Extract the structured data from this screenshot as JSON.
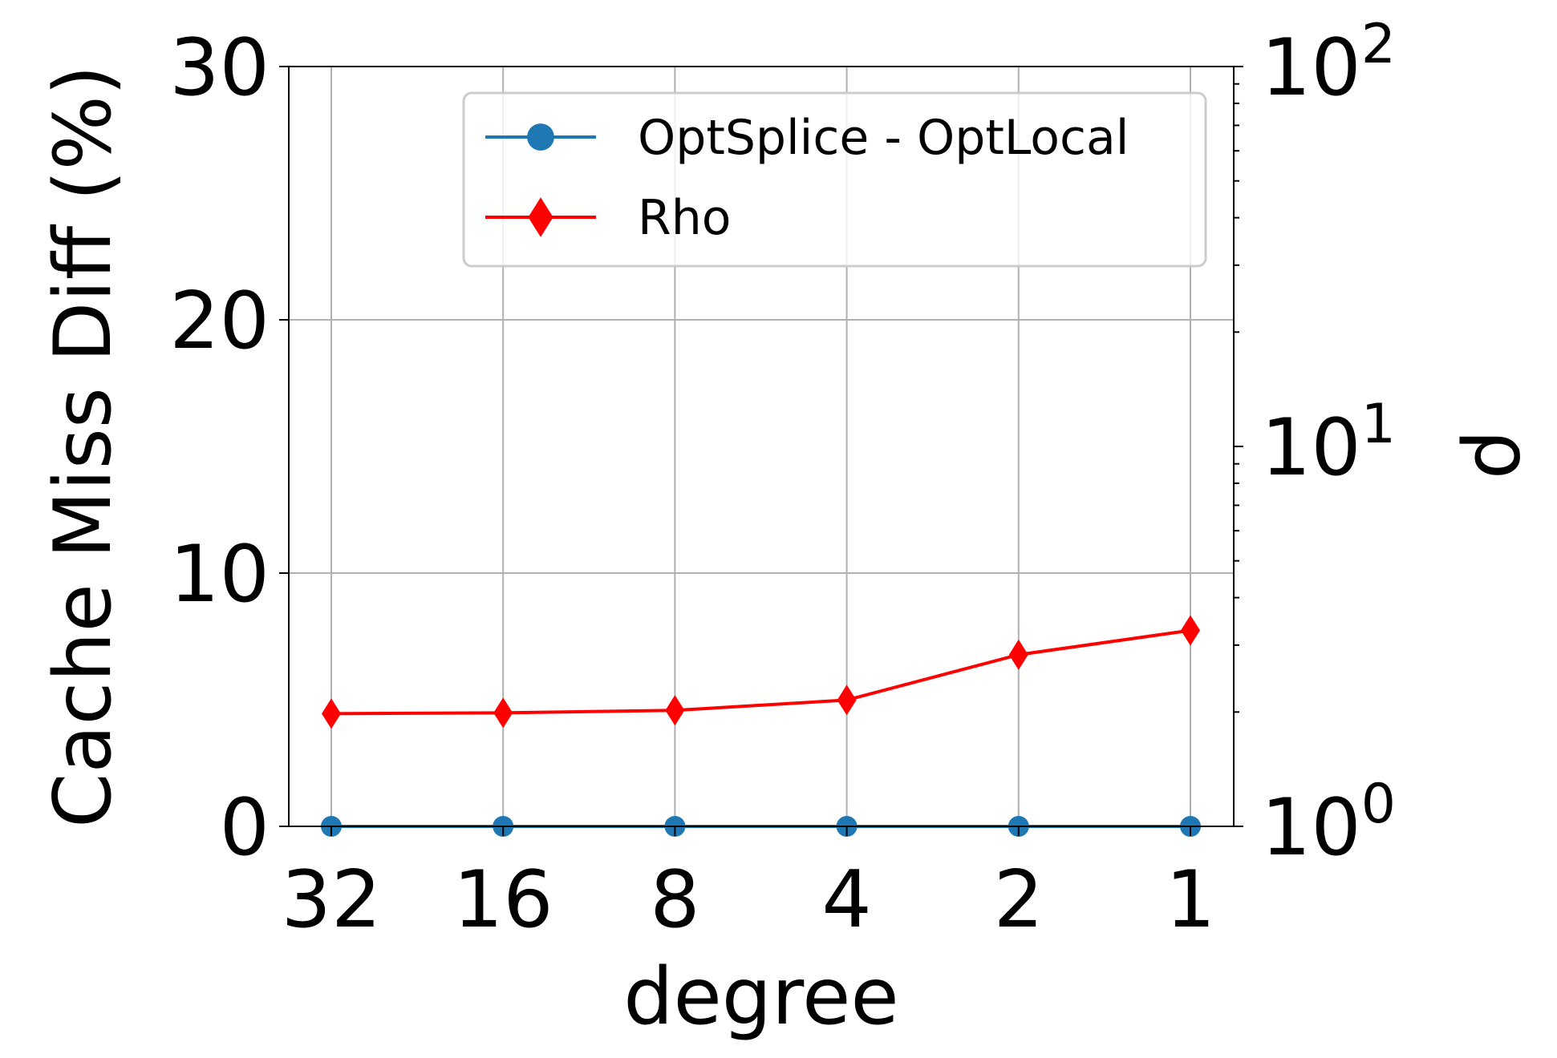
{
  "chart_data": {
    "type": "line",
    "xlabel": "degree",
    "ylabel_left": "Cache Miss Diff (%)",
    "ylabel_right": "ρ",
    "categories": [
      "32",
      "16",
      "8",
      "4",
      "2",
      "1"
    ],
    "ylim_left": [
      0,
      30
    ],
    "yticks_left": [
      "0",
      "10",
      "20",
      "30"
    ],
    "ylim_right": [
      1,
      100
    ],
    "yscale_right": "log",
    "yticks_right": [
      {
        "base": "10",
        "exp": "0",
        "value": 1
      },
      {
        "base": "10",
        "exp": "1",
        "value": 10
      },
      {
        "base": "10",
        "exp": "2",
        "value": 100
      }
    ],
    "grid": true,
    "legend_position": "top-right",
    "series": [
      {
        "name": "OptSplice - OptLocal",
        "axis": "left",
        "color": "#1f77b4",
        "marker": "circle",
        "values": [
          0,
          0,
          0,
          0,
          0,
          0
        ]
      },
      {
        "name": "Rho",
        "axis": "right",
        "color": "#ff0000",
        "marker": "diamond",
        "values": [
          1.98,
          1.99,
          2.02,
          2.15,
          2.83,
          3.28
        ]
      }
    ]
  }
}
